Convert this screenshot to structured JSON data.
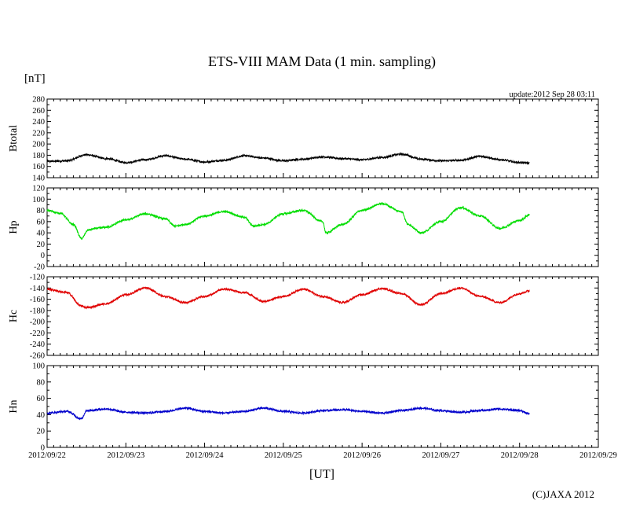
{
  "title": "ETS-VIII MAM Data (1 min. sampling)",
  "unit_label": "[nT]",
  "update_label": "update:2012 Sep 28 03:11",
  "xlabel": "[UT]",
  "copyright": "(C)JAXA 2012",
  "colors": {
    "Btotal": "#000000",
    "Hp": "#00dd00",
    "Hc": "#e00000",
    "Hn": "#0000cc"
  },
  "chart_data": [
    {
      "type": "line",
      "ylabel": "Btotal",
      "ylim": [
        140,
        280
      ],
      "yticks": [
        140,
        160,
        180,
        200,
        220,
        240,
        260,
        280
      ],
      "xlim": [
        "2012/09/22",
        "2012/09/29"
      ],
      "xticks": [
        "2012/09/22",
        "2012/09/23",
        "2012/09/24",
        "2012/09/25",
        "2012/09/26",
        "2012/09/27",
        "2012/09/28",
        "2012/09/29"
      ],
      "series": [
        {
          "color": "#000000",
          "x": [
            "2012/09/22 00:00",
            "2012/09/22 06:00",
            "2012/09/22 12:00",
            "2012/09/22 18:00",
            "2012/09/23 00:00",
            "2012/09/23 06:00",
            "2012/09/23 12:00",
            "2012/09/23 18:00",
            "2012/09/24 00:00",
            "2012/09/24 06:00",
            "2012/09/24 12:00",
            "2012/09/24 18:00",
            "2012/09/25 00:00",
            "2012/09/25 06:00",
            "2012/09/25 12:00",
            "2012/09/25 18:00",
            "2012/09/26 00:00",
            "2012/09/26 06:00",
            "2012/09/26 12:00",
            "2012/09/26 18:00",
            "2012/09/27 00:00",
            "2012/09/27 06:00",
            "2012/09/27 12:00",
            "2012/09/27 18:00",
            "2012/09/28 00:00",
            "2012/09/28 03:00"
          ],
          "values": [
            169,
            170,
            181,
            174,
            167,
            172,
            179,
            173,
            168,
            171,
            179,
            175,
            170,
            173,
            177,
            174,
            172,
            176,
            182,
            173,
            170,
            171,
            178,
            172,
            167,
            166
          ]
        }
      ]
    },
    {
      "type": "line",
      "ylabel": "Hp",
      "ylim": [
        -20,
        120
      ],
      "yticks": [
        -20,
        0,
        20,
        40,
        60,
        80,
        100,
        120
      ],
      "xlim": [
        "2012/09/22",
        "2012/09/29"
      ],
      "xticks": [
        "2012/09/22",
        "2012/09/23",
        "2012/09/24",
        "2012/09/25",
        "2012/09/26",
        "2012/09/27",
        "2012/09/28",
        "2012/09/29"
      ],
      "series": [
        {
          "color": "#00dd00",
          "x": [
            "2012/09/22 00:00",
            "2012/09/22 04:00",
            "2012/09/22 08:00",
            "2012/09/22 10:30",
            "2012/09/22 12:30",
            "2012/09/22 15:00",
            "2012/09/22 18:00",
            "2012/09/23 00:00",
            "2012/09/23 06:00",
            "2012/09/23 12:00",
            "2012/09/23 15:00",
            "2012/09/23 18:00",
            "2012/09/24 00:00",
            "2012/09/24 06:00",
            "2012/09/24 12:00",
            "2012/09/24 15:00",
            "2012/09/24 18:00",
            "2012/09/25 00:00",
            "2012/09/25 06:00",
            "2012/09/25 12:00",
            "2012/09/25 13:00",
            "2012/09/25 18:00",
            "2012/09/26 00:00",
            "2012/09/26 06:00",
            "2012/09/26 12:00",
            "2012/09/26 14:00",
            "2012/09/26 18:00",
            "2012/09/27 00:00",
            "2012/09/27 06:00",
            "2012/09/27 12:00",
            "2012/09/27 18:00",
            "2012/09/28 00:00",
            "2012/09/28 03:00"
          ],
          "values": [
            80,
            75,
            55,
            30,
            45,
            48,
            50,
            63,
            74,
            65,
            52,
            55,
            70,
            78,
            68,
            52,
            55,
            74,
            80,
            60,
            40,
            55,
            80,
            92,
            78,
            55,
            40,
            60,
            85,
            70,
            48,
            62,
            72
          ]
        }
      ]
    },
    {
      "type": "line",
      "ylabel": "Hc",
      "ylim": [
        -260,
        -120
      ],
      "yticks": [
        -260,
        -240,
        -220,
        -200,
        -180,
        -160,
        -140,
        -120
      ],
      "xlim": [
        "2012/09/22",
        "2012/09/29"
      ],
      "xticks": [
        "2012/09/22",
        "2012/09/23",
        "2012/09/24",
        "2012/09/25",
        "2012/09/26",
        "2012/09/27",
        "2012/09/28",
        "2012/09/29"
      ],
      "series": [
        {
          "color": "#e00000",
          "x": [
            "2012/09/22 00:00",
            "2012/09/22 06:00",
            "2012/09/22 10:30",
            "2012/09/22 12:00",
            "2012/09/22 18:00",
            "2012/09/23 00:00",
            "2012/09/23 06:00",
            "2012/09/23 12:00",
            "2012/09/23 18:00",
            "2012/09/24 00:00",
            "2012/09/24 06:00",
            "2012/09/24 12:00",
            "2012/09/24 18:00",
            "2012/09/25 00:00",
            "2012/09/25 06:00",
            "2012/09/25 12:00",
            "2012/09/25 18:00",
            "2012/09/26 00:00",
            "2012/09/26 06:00",
            "2012/09/26 12:00",
            "2012/09/26 18:00",
            "2012/09/27 00:00",
            "2012/09/27 06:00",
            "2012/09/27 12:00",
            "2012/09/27 18:00",
            "2012/09/28 00:00",
            "2012/09/28 03:00"
          ],
          "values": [
            -142,
            -148,
            -172,
            -175,
            -168,
            -152,
            -140,
            -155,
            -166,
            -155,
            -142,
            -148,
            -164,
            -155,
            -142,
            -155,
            -166,
            -152,
            -141,
            -150,
            -170,
            -150,
            -140,
            -155,
            -166,
            -150,
            -145
          ]
        }
      ]
    },
    {
      "type": "line",
      "ylabel": "Hn",
      "ylim": [
        0,
        100
      ],
      "yticks": [
        0,
        20,
        40,
        60,
        80,
        100
      ],
      "xlim": [
        "2012/09/22",
        "2012/09/29"
      ],
      "xticks": [
        "2012/09/22",
        "2012/09/23",
        "2012/09/24",
        "2012/09/25",
        "2012/09/26",
        "2012/09/27",
        "2012/09/28",
        "2012/09/29"
      ],
      "series": [
        {
          "color": "#0000cc",
          "x": [
            "2012/09/22 00:00",
            "2012/09/22 06:00",
            "2012/09/22 10:30",
            "2012/09/22 12:00",
            "2012/09/22 18:00",
            "2012/09/23 00:00",
            "2012/09/23 06:00",
            "2012/09/23 12:00",
            "2012/09/23 18:00",
            "2012/09/24 00:00",
            "2012/09/24 06:00",
            "2012/09/24 12:00",
            "2012/09/24 18:00",
            "2012/09/25 00:00",
            "2012/09/25 06:00",
            "2012/09/25 12:00",
            "2012/09/25 18:00",
            "2012/09/26 00:00",
            "2012/09/26 06:00",
            "2012/09/26 12:00",
            "2012/09/26 18:00",
            "2012/09/27 00:00",
            "2012/09/27 06:00",
            "2012/09/27 12:00",
            "2012/09/27 18:00",
            "2012/09/28 00:00",
            "2012/09/28 03:00"
          ],
          "values": [
            42,
            44,
            35,
            45,
            47,
            43,
            42,
            44,
            48,
            44,
            42,
            44,
            48,
            44,
            42,
            45,
            46,
            44,
            42,
            45,
            48,
            45,
            43,
            45,
            47,
            45,
            41
          ]
        }
      ]
    }
  ]
}
